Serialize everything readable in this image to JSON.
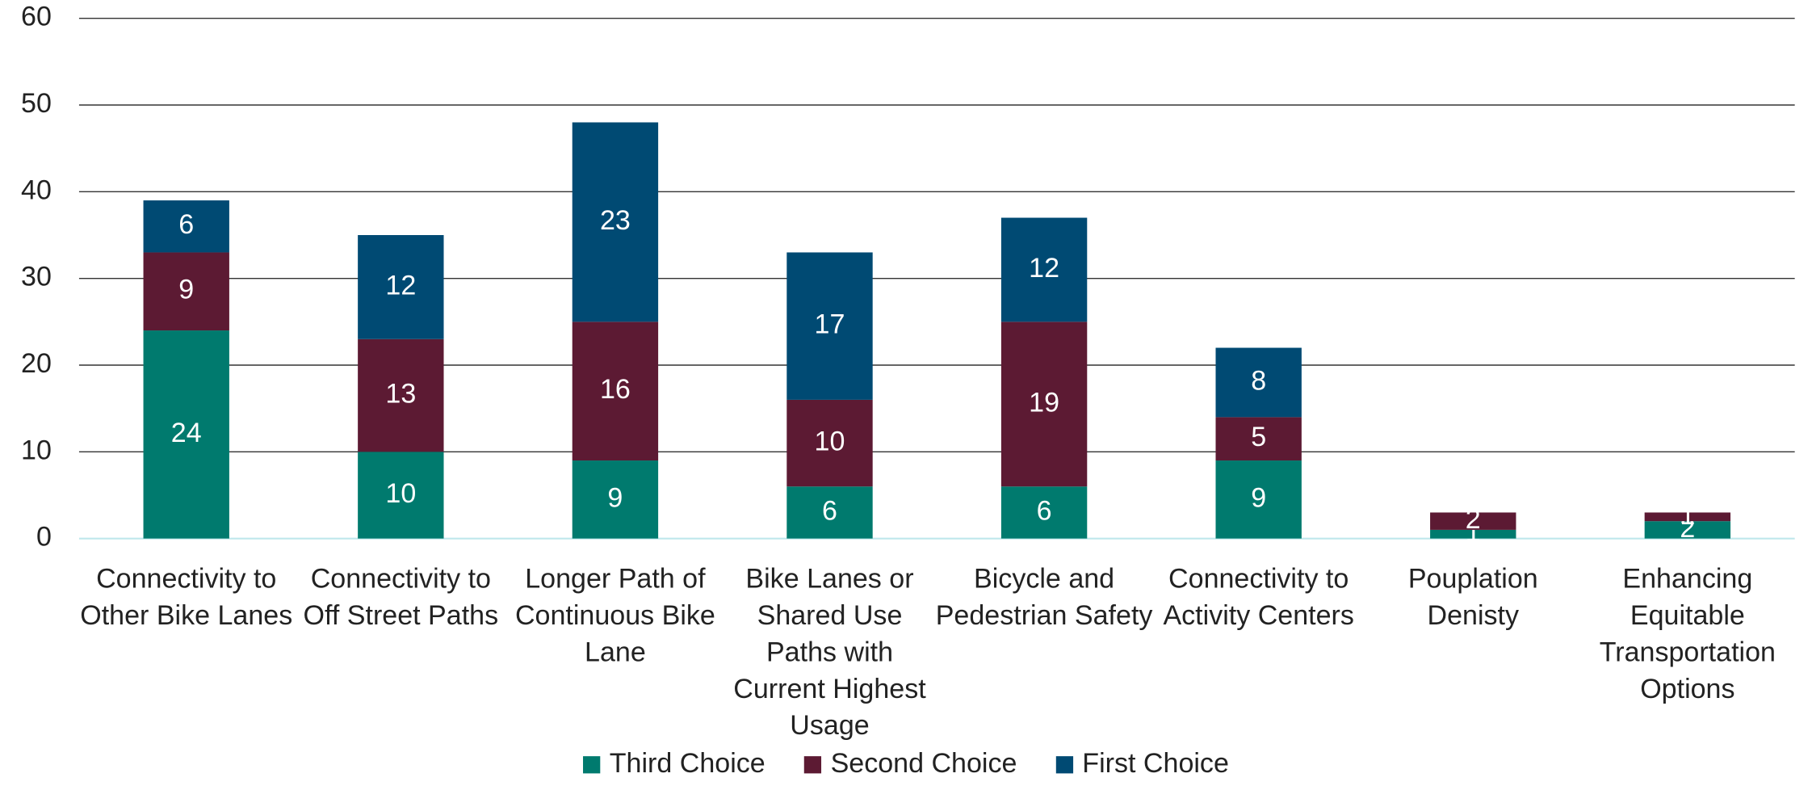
{
  "chart_data": {
    "type": "stacked_bar",
    "categories": [
      "Connectivity to Other Bike Lanes",
      "Connectivity to Off Street Paths",
      "Longer Path of Continuous Bike Lane",
      "Bike Lanes or Shared Use Paths with Current Highest Usage",
      "Bicycle and Pedestrian Safety",
      "Connectivity to Activity Centers",
      "Pouplation Denisty",
      "Enhancing Equitable Transportation Options"
    ],
    "series": [
      {
        "name": "Third Choice",
        "color": "#007a6e",
        "values": [
          24,
          10,
          9,
          6,
          6,
          9,
          1,
          2
        ]
      },
      {
        "name": "Second Choice",
        "color": "#5c1a33",
        "values": [
          9,
          13,
          16,
          10,
          19,
          5,
          2,
          1
        ]
      },
      {
        "name": "First Choice",
        "color": "#004a73",
        "values": [
          6,
          12,
          23,
          17,
          12,
          8,
          0,
          0
        ]
      }
    ],
    "ylim": [
      0,
      60
    ],
    "yticks": [
      0,
      10,
      20,
      30,
      40,
      50,
      60
    ],
    "grid": true,
    "legend": "bottom"
  }
}
